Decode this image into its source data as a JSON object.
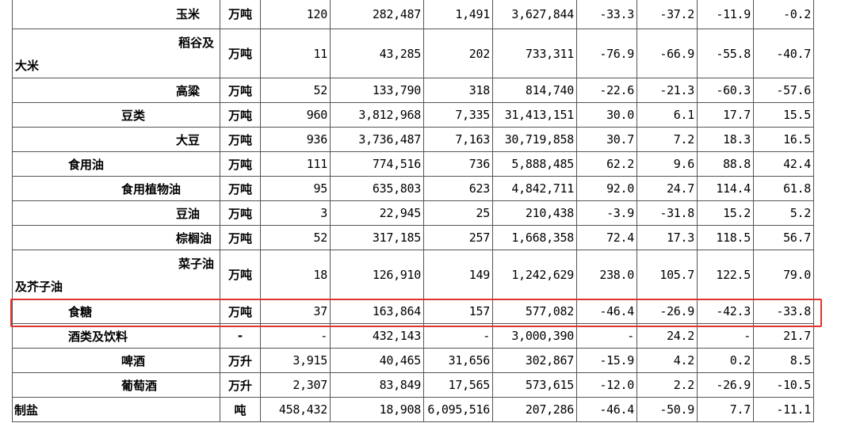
{
  "rows": [
    {
      "name": "玉米",
      "unit": "万吨",
      "v": [
        "120",
        "282,487",
        "1,491",
        "3,627,844",
        "-33.3",
        "-37.2",
        "-11.9",
        "-0.2"
      ]
    },
    {
      "name1": "稻谷及",
      "name2": "大米",
      "unit": "万吨",
      "v": [
        "11",
        "43,285",
        "202",
        "733,311",
        "-76.9",
        "-66.9",
        "-55.8",
        "-40.7"
      ]
    },
    {
      "name": "高粱",
      "unit": "万吨",
      "v": [
        "52",
        "133,790",
        "318",
        "814,740",
        "-22.6",
        "-21.3",
        "-60.3",
        "-57.6"
      ]
    },
    {
      "name": "豆类",
      "unit": "万吨",
      "v": [
        "960",
        "3,812,968",
        "7,335",
        "31,413,151",
        "30.0",
        "6.1",
        "17.7",
        "15.5"
      ]
    },
    {
      "name": "大豆",
      "unit": "万吨",
      "v": [
        "936",
        "3,736,487",
        "7,163",
        "30,719,858",
        "30.7",
        "7.2",
        "18.3",
        "16.5"
      ]
    },
    {
      "name": "食用油",
      "unit": "万吨",
      "v": [
        "111",
        "774,516",
        "736",
        "5,888,485",
        "62.2",
        "9.6",
        "88.8",
        "42.4"
      ]
    },
    {
      "name": "食用植物油",
      "unit": "万吨",
      "v": [
        "95",
        "635,803",
        "623",
        "4,842,711",
        "92.0",
        "24.7",
        "114.4",
        "61.8"
      ]
    },
    {
      "name": "豆油",
      "unit": "万吨",
      "v": [
        "3",
        "22,945",
        "25",
        "210,438",
        "-3.9",
        "-31.8",
        "15.2",
        "5.2"
      ]
    },
    {
      "name": "棕榈油",
      "unit": "万吨",
      "v": [
        "52",
        "317,185",
        "257",
        "1,668,358",
        "72.4",
        "17.3",
        "118.5",
        "56.7"
      ]
    },
    {
      "name1": "菜子油",
      "name2": "及芥子油",
      "unit": "万吨",
      "v": [
        "18",
        "126,910",
        "149",
        "1,242,629",
        "238.0",
        "105.7",
        "122.5",
        "79.0"
      ]
    },
    {
      "name": "食糖",
      "unit": "万吨",
      "v": [
        "37",
        "163,864",
        "157",
        "577,082",
        "-46.4",
        "-26.9",
        "-42.3",
        "-33.8"
      ]
    },
    {
      "name": "酒类及饮料",
      "unit": "-",
      "v": [
        "-",
        "432,143",
        "-",
        "3,000,390",
        "-",
        "24.2",
        "-",
        "21.7"
      ]
    },
    {
      "name": "啤酒",
      "unit": "万升",
      "v": [
        "3,915",
        "40,465",
        "31,656",
        "302,867",
        "-15.9",
        "4.2",
        "0.2",
        "8.5"
      ]
    },
    {
      "name": "葡萄酒",
      "unit": "万升",
      "v": [
        "2,307",
        "83,849",
        "17,565",
        "573,615",
        "-12.0",
        "2.2",
        "-26.9",
        "-10.5"
      ]
    },
    {
      "name": "制盐",
      "unit": "吨",
      "v": [
        "458,432",
        "18,908",
        "6,095,516",
        "207,286",
        "-46.4",
        "-50.9",
        "7.7",
        "-11.1"
      ]
    }
  ],
  "highlight_color": "#e0342c"
}
